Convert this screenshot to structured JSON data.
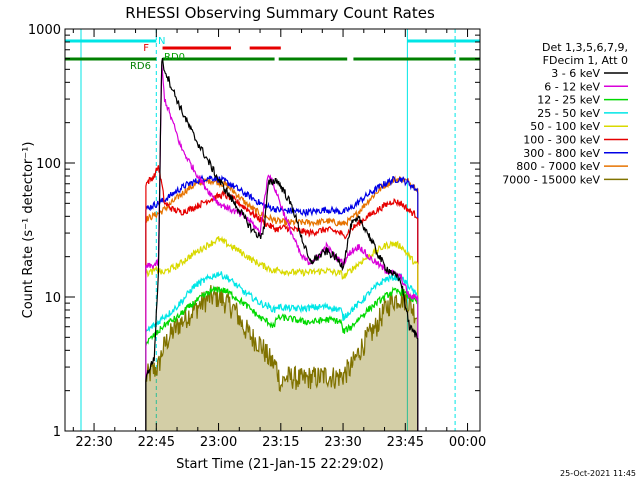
{
  "chart_data": {
    "type": "line",
    "title": "RHESSI Observing Summary Count Rates",
    "xlabel": "Start Time (21-Jan-15 22:29:02)",
    "ylabel": "Count Rate (s⁻¹ detector⁻¹)",
    "yscale": "log",
    "ylim": [
      1,
      1000
    ],
    "xlim_minutes": [
      -7,
      93
    ],
    "x_ticks": [
      {
        "label": "22:30",
        "minute": 0
      },
      {
        "label": "22:45",
        "minute": 15
      },
      {
        "label": "23:00",
        "minute": 30
      },
      {
        "label": "23:15",
        "minute": 45
      },
      {
        "label": "23:30",
        "minute": 60
      },
      {
        "label": "23:45",
        "minute": 75
      },
      {
        "label": "00:00",
        "minute": 90
      }
    ],
    "y_ticks": [
      {
        "label": "1",
        "value": 1
      },
      {
        "label": "10",
        "value": 10
      },
      {
        "label": "100",
        "value": 100
      },
      {
        "label": "1000",
        "value": 1000
      }
    ],
    "legend_header": [
      "Det 1,3,5,6,7,9,",
      "FDecim 1, Att 0"
    ],
    "legend_position": "right",
    "timestamp": "25-Oct-2021 11:45",
    "series": [
      {
        "name": "3 - 6 keV",
        "color": "#000000",
        "x": [
          12.5,
          13.5,
          14.5,
          15.5,
          16.3,
          17,
          19,
          21,
          24,
          27,
          30,
          33,
          36,
          38,
          40,
          41,
          42,
          44,
          46,
          48,
          50,
          52,
          54,
          56,
          58,
          60,
          62,
          64,
          66,
          68,
          70,
          72,
          74,
          76,
          78
        ],
        "y": [
          2.5,
          3,
          3.5,
          15,
          600,
          500,
          350,
          250,
          160,
          110,
          75,
          55,
          40,
          32,
          28,
          33,
          70,
          75,
          60,
          45,
          28,
          18,
          20,
          22,
          20,
          17,
          35,
          38,
          30,
          22,
          17,
          15,
          13,
          6,
          5
        ]
      },
      {
        "name": "6 - 12 keV",
        "color": "#d900d9",
        "x": [
          12.5,
          14,
          15.5,
          16.3,
          17,
          19,
          21,
          24,
          27,
          30,
          33,
          36,
          38,
          40,
          42,
          44,
          46,
          48,
          50,
          52,
          54,
          56,
          58,
          60,
          62,
          64,
          66,
          68,
          70,
          72,
          74,
          76,
          78
        ],
        "y": [
          17,
          17,
          18,
          550,
          300,
          200,
          130,
          90,
          65,
          50,
          45,
          40,
          36,
          30,
          85,
          60,
          40,
          28,
          20,
          18,
          20,
          24,
          20,
          18,
          22,
          24,
          20,
          18,
          16,
          15,
          14,
          10,
          10
        ]
      },
      {
        "name": "12 - 25 keV",
        "color": "#00d900",
        "x": [
          12.5,
          14,
          15.5,
          16.5,
          18,
          20,
          22,
          24,
          26,
          28,
          30,
          32,
          34,
          36,
          38,
          40,
          42,
          43.5,
          44,
          46,
          48,
          50,
          52,
          54,
          56,
          58,
          59.5,
          60,
          62,
          64,
          66,
          68,
          70,
          72,
          74,
          76,
          78
        ],
        "y": [
          4.5,
          5,
          5.5,
          6,
          6.5,
          7,
          8,
          9,
          10,
          11,
          11.5,
          11,
          10,
          9,
          8,
          7,
          6.5,
          6,
          7,
          7,
          6.8,
          6.6,
          6.5,
          6.6,
          6.8,
          6.7,
          6.5,
          5.5,
          6,
          7,
          8,
          9,
          10,
          11,
          11,
          10,
          9
        ]
      },
      {
        "name": "25 - 50 keV",
        "color": "#00e6e6",
        "x": [
          12.5,
          14,
          15.5,
          16.5,
          18,
          20,
          22,
          24,
          26,
          28,
          30,
          32,
          34,
          36,
          38,
          40,
          42,
          43.5,
          44,
          46,
          48,
          50,
          52,
          54,
          56,
          58,
          59.5,
          60,
          62,
          64,
          66,
          68,
          70,
          72,
          74,
          76,
          78
        ],
        "y": [
          5.5,
          6,
          6.5,
          7,
          7.5,
          8.5,
          10,
          12,
          13,
          14,
          15,
          14,
          12.5,
          11,
          10,
          9,
          8.5,
          8,
          8.5,
          8.3,
          8.2,
          8.2,
          8.3,
          8.4,
          8.5,
          8.2,
          8,
          7,
          8,
          9,
          10.5,
          12,
          13.5,
          14,
          14,
          12,
          10
        ]
      },
      {
        "name": "50 - 100 keV",
        "color": "#d9d900",
        "x": [
          12.5,
          14,
          15.5,
          16.5,
          18,
          20,
          22,
          24,
          26,
          28,
          30,
          32,
          34,
          36,
          38,
          40,
          42,
          43.5,
          44,
          46,
          48,
          50,
          52,
          54,
          56,
          58,
          59.5,
          60,
          62,
          64,
          66,
          68,
          70,
          72,
          74,
          76,
          78
        ],
        "y": [
          15,
          15.5,
          16,
          15,
          16,
          17,
          19,
          21,
          23,
          25,
          27,
          25,
          23,
          21,
          19,
          17.5,
          16.5,
          15.5,
          16,
          15.5,
          15.3,
          15.2,
          15.3,
          15.5,
          15.8,
          15.2,
          15,
          14,
          16,
          18,
          20,
          22,
          24,
          25,
          24,
          20,
          17
        ]
      },
      {
        "name": "100 - 300 keV",
        "color": "#e60000",
        "x": [
          12.5,
          13.5,
          14.5,
          15.5,
          16.3,
          17,
          19,
          21,
          23,
          25,
          27,
          29,
          31,
          33,
          35,
          37,
          39,
          41,
          43,
          44,
          46,
          48,
          50,
          52,
          54,
          56,
          58,
          59.5,
          60,
          62,
          64,
          66,
          68,
          70,
          72,
          74,
          76,
          78
        ],
        "y": [
          70,
          75,
          80,
          95,
          70,
          50,
          45,
          43,
          45,
          48,
          52,
          55,
          58,
          55,
          50,
          45,
          40,
          36,
          33,
          32,
          33,
          32,
          31,
          30,
          31,
          32,
          31,
          30,
          28,
          32,
          36,
          40,
          44,
          48,
          52,
          50,
          44,
          40
        ]
      },
      {
        "name": "300 - 800 keV",
        "color": "#0000e6",
        "x": [
          12.5,
          14,
          15.5,
          16.5,
          18,
          20,
          22,
          24,
          26,
          28,
          30,
          32,
          34,
          36,
          38,
          40,
          42,
          44,
          46,
          48,
          50,
          52,
          54,
          56,
          58,
          60,
          62,
          64,
          66,
          68,
          70,
          72,
          74,
          76,
          78
        ],
        "y": [
          45,
          48,
          50,
          52,
          56,
          62,
          68,
          72,
          76,
          78,
          76,
          72,
          66,
          60,
          55,
          50,
          47,
          45,
          44,
          44,
          43,
          43,
          44,
          45,
          44,
          43,
          46,
          52,
          58,
          64,
          70,
          75,
          76,
          70,
          62
        ]
      },
      {
        "name": "800 - 7000 keV",
        "color": "#e67300",
        "x": [
          12.5,
          14,
          15.5,
          16.5,
          18,
          20,
          22,
          24,
          26,
          28,
          30,
          32,
          34,
          36,
          38,
          40,
          42,
          44,
          46,
          48,
          50,
          52,
          54,
          56,
          58,
          60,
          62,
          64,
          66,
          68,
          70,
          72,
          74,
          76,
          78
        ],
        "y": [
          38,
          40,
          42,
          44,
          48,
          55,
          62,
          68,
          72,
          74,
          72,
          68,
          60,
          52,
          46,
          42,
          39,
          37,
          36,
          36,
          36,
          36,
          36,
          37,
          36,
          35,
          38,
          44,
          52,
          60,
          68,
          74,
          76,
          72,
          64
        ]
      },
      {
        "name": "7000 - 15000 keV",
        "color": "#807300",
        "x": [
          12.5,
          14,
          15.5,
          16.5,
          18,
          20,
          22,
          24,
          26,
          28,
          30,
          32,
          34,
          36,
          38,
          40,
          42,
          44,
          45,
          46,
          48,
          50,
          52,
          54,
          56,
          58,
          60,
          62,
          64,
          66,
          68,
          70,
          72,
          74,
          76,
          78
        ],
        "y": [
          2.5,
          2.8,
          3.0,
          4,
          5,
          6,
          7,
          8,
          9,
          10,
          10,
          9,
          8,
          6,
          5,
          4.5,
          3.5,
          3,
          2.2,
          2.5,
          2.5,
          2.4,
          2.5,
          2.5,
          2.6,
          2.5,
          2.6,
          3,
          4,
          5,
          6,
          8,
          9.5,
          10,
          9,
          7
        ]
      }
    ],
    "flags": [
      {
        "label": "N",
        "color": "#00e6e6",
        "segments": [
          [
            -7,
            15
          ],
          [
            75.5,
            93
          ]
        ]
      },
      {
        "label": "F",
        "color": "#e60000",
        "segments": [
          [
            16.5,
            33
          ],
          [
            37.5,
            45
          ]
        ]
      },
      {
        "label": "RD0",
        "color": "#00a000",
        "segments": []
      },
      {
        "label": "RD6",
        "color": "#008000",
        "segments": [
          [
            -7,
            15
          ],
          [
            16.5,
            43.5
          ],
          [
            44.5,
            61
          ],
          [
            62.5,
            87
          ],
          [
            88,
            93
          ]
        ]
      }
    ]
  }
}
